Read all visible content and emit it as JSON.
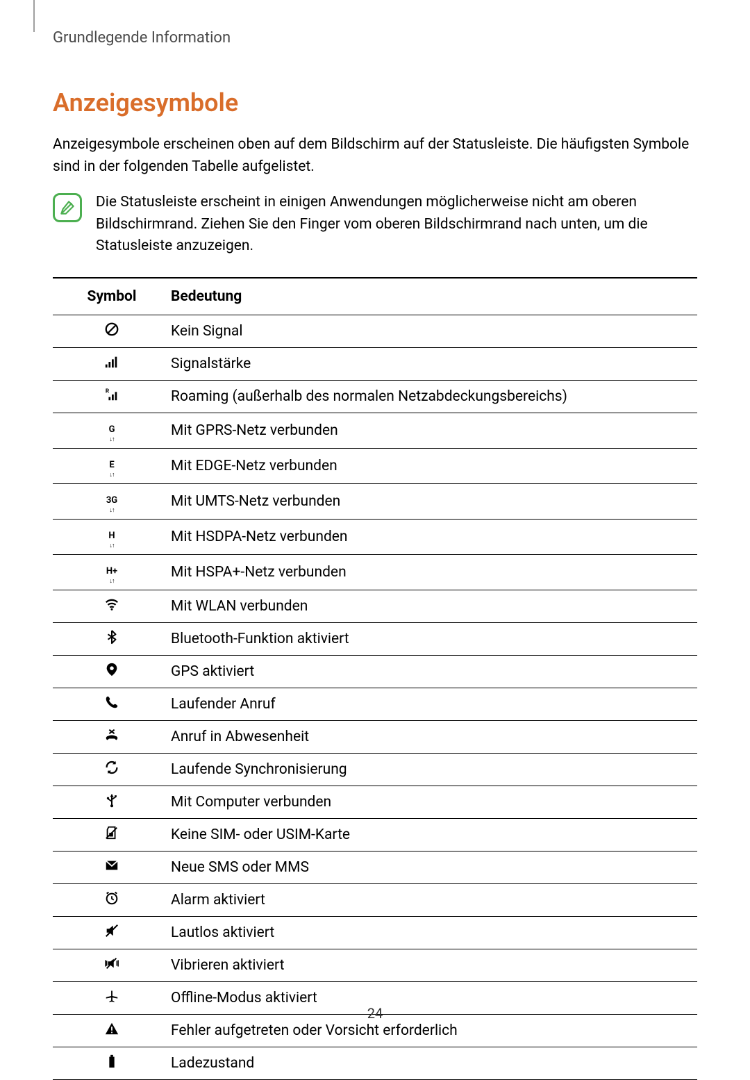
{
  "breadcrumb": "Grundlegende Information",
  "heading": "Anzeigesymbole",
  "intro": "Anzeigesymbole erscheinen oben auf dem Bildschirm auf der Statusleiste. Die häufigsten Symbole sind in der folgenden Tabelle aufgelistet.",
  "note": "Die Statusleiste erscheint in einigen Anwendungen möglicherweise nicht am oberen Bildschirmrand. Ziehen Sie den Finger vom oberen Bildschirmrand nach unten, um die Statusleiste anzuzeigen.",
  "table": {
    "header_symbol": "Symbol",
    "header_meaning": "Bedeutung",
    "rows": [
      {
        "icon": "no-signal",
        "meaning": "Kein Signal"
      },
      {
        "icon": "signal",
        "meaning": "Signalstärke"
      },
      {
        "icon": "roaming",
        "meaning": "Roaming (außerhalb des normalen Netzabdeckungsbereichs)"
      },
      {
        "icon": "gprs",
        "meaning": "Mit GPRS-Netz verbunden"
      },
      {
        "icon": "edge",
        "meaning": "Mit EDGE-Netz verbunden"
      },
      {
        "icon": "umts",
        "meaning": "Mit UMTS-Netz verbunden"
      },
      {
        "icon": "hsdpa",
        "meaning": "Mit HSDPA-Netz verbunden"
      },
      {
        "icon": "hspa-plus",
        "meaning": "Mit HSPA+-Netz verbunden"
      },
      {
        "icon": "wifi",
        "meaning": "Mit WLAN verbunden"
      },
      {
        "icon": "bluetooth",
        "meaning": "Bluetooth-Funktion aktiviert"
      },
      {
        "icon": "gps",
        "meaning": "GPS aktiviert"
      },
      {
        "icon": "call",
        "meaning": "Laufender Anruf"
      },
      {
        "icon": "missed-call",
        "meaning": "Anruf in Abwesenheit"
      },
      {
        "icon": "sync",
        "meaning": "Laufende Synchronisierung"
      },
      {
        "icon": "usb",
        "meaning": "Mit Computer verbunden"
      },
      {
        "icon": "no-sim",
        "meaning": "Keine SIM- oder USIM-Karte"
      },
      {
        "icon": "sms",
        "meaning": "Neue SMS oder MMS"
      },
      {
        "icon": "alarm",
        "meaning": "Alarm aktiviert"
      },
      {
        "icon": "mute",
        "meaning": "Lautlos aktiviert"
      },
      {
        "icon": "vibrate",
        "meaning": "Vibrieren aktiviert"
      },
      {
        "icon": "airplane",
        "meaning": "Offline-Modus aktiviert"
      },
      {
        "icon": "warning",
        "meaning": "Fehler aufgetreten oder Vorsicht erforderlich"
      },
      {
        "icon": "battery",
        "meaning": "Ladezustand"
      }
    ]
  },
  "page_number": "24",
  "colors": {
    "heading": "#d96d2a",
    "note_border": "#4caf50",
    "text": "#000000",
    "breadcrumb": "#4a4a4a"
  }
}
